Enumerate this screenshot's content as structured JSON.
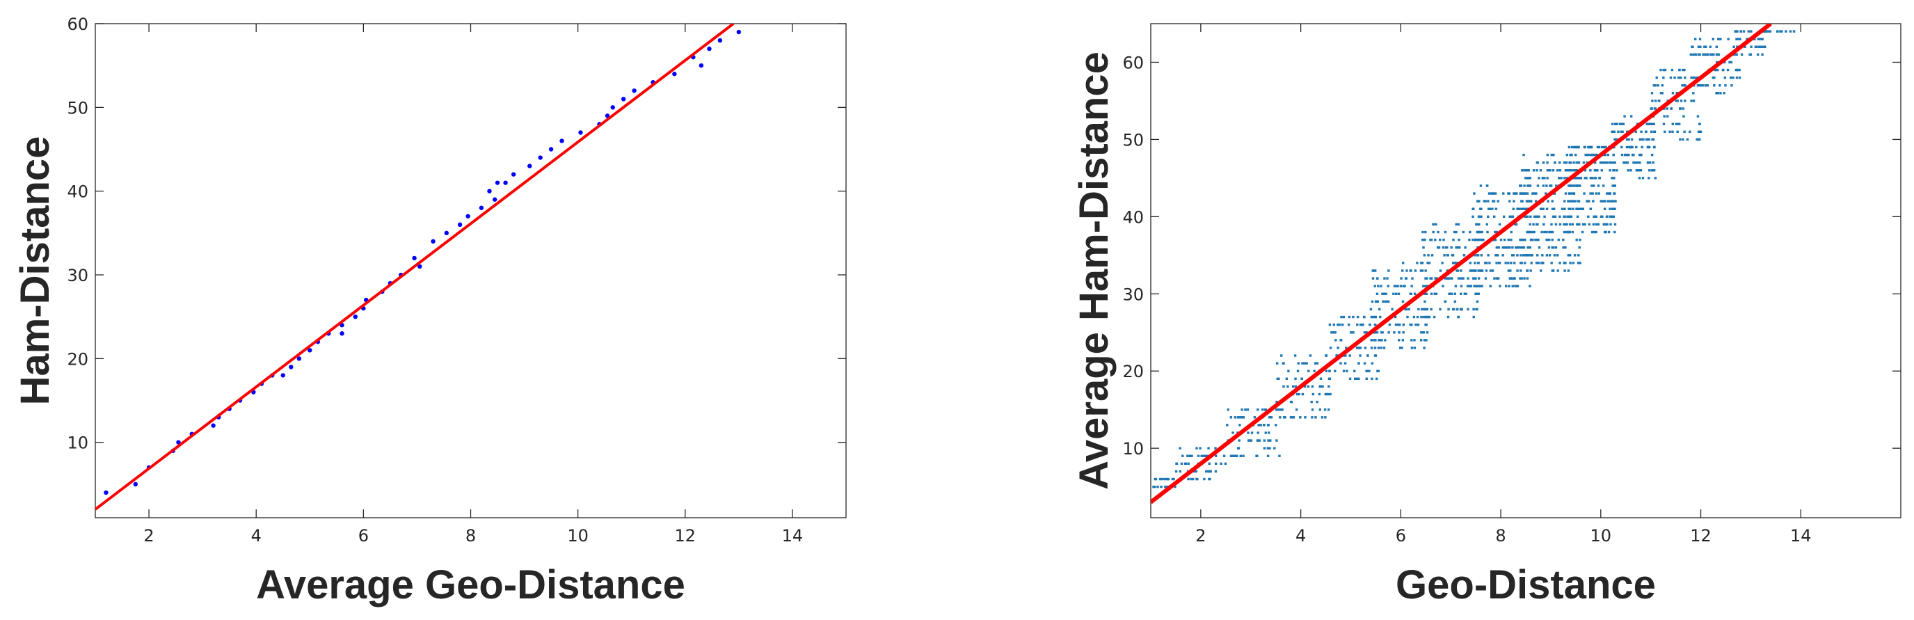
{
  "chart_data": [
    {
      "type": "scatter",
      "xlabel": "Average Geo-Distance",
      "ylabel": "Ham-Distance",
      "xlim": [
        1,
        15
      ],
      "ylim": [
        1,
        60
      ],
      "xticks": [
        2,
        4,
        6,
        8,
        10,
        12,
        14
      ],
      "yticks": [
        10,
        20,
        30,
        40,
        50,
        60
      ],
      "grid": false,
      "colors": {
        "points": "#0000ff",
        "fit": "#ff0000",
        "axis": "#262626"
      },
      "fit_line": {
        "x": [
          1,
          12.9
        ],
        "y": [
          2,
          60
        ]
      },
      "points": [
        [
          1.2,
          4
        ],
        [
          1.75,
          5
        ],
        [
          2.0,
          7
        ],
        [
          2.45,
          9
        ],
        [
          2.55,
          10
        ],
        [
          2.8,
          11
        ],
        [
          3.2,
          12
        ],
        [
          3.3,
          13
        ],
        [
          3.5,
          14
        ],
        [
          3.7,
          15
        ],
        [
          3.95,
          16
        ],
        [
          4.1,
          17
        ],
        [
          4.3,
          18
        ],
        [
          4.5,
          18
        ],
        [
          4.65,
          19
        ],
        [
          4.8,
          20
        ],
        [
          5.0,
          21
        ],
        [
          5.15,
          22
        ],
        [
          5.35,
          23
        ],
        [
          5.6,
          23
        ],
        [
          5.6,
          24
        ],
        [
          5.85,
          25
        ],
        [
          6.0,
          26
        ],
        [
          6.05,
          27
        ],
        [
          6.35,
          28
        ],
        [
          6.5,
          29
        ],
        [
          6.7,
          30
        ],
        [
          6.95,
          32
        ],
        [
          7.05,
          31
        ],
        [
          7.3,
          34
        ],
        [
          7.55,
          35
        ],
        [
          7.8,
          36
        ],
        [
          7.95,
          37
        ],
        [
          8.2,
          38
        ],
        [
          8.35,
          40
        ],
        [
          8.45,
          39
        ],
        [
          8.5,
          41
        ],
        [
          8.65,
          41
        ],
        [
          8.8,
          42
        ],
        [
          9.1,
          43
        ],
        [
          9.3,
          44
        ],
        [
          9.5,
          45
        ],
        [
          9.7,
          46
        ],
        [
          10.05,
          47
        ],
        [
          10.4,
          48
        ],
        [
          10.55,
          49
        ],
        [
          10.65,
          50
        ],
        [
          10.85,
          51
        ],
        [
          11.05,
          52
        ],
        [
          11.4,
          53
        ],
        [
          11.8,
          54
        ],
        [
          12.15,
          56
        ],
        [
          12.3,
          55
        ],
        [
          12.45,
          57
        ],
        [
          12.65,
          58
        ],
        [
          13.0,
          59
        ]
      ]
    },
    {
      "type": "scatter",
      "xlabel": "Geo-Distance",
      "ylabel": "Average Ham-Distance",
      "xlim": [
        1,
        16
      ],
      "ylim": [
        1,
        65
      ],
      "xticks": [
        2,
        4,
        6,
        8,
        10,
        12,
        14
      ],
      "yticks": [
        10,
        20,
        30,
        40,
        50,
        60
      ],
      "grid": false,
      "colors": {
        "points": "#1f77b4",
        "fit": "#ff0000",
        "axis": "#262626"
      },
      "fit_line": {
        "x": [
          1,
          13.4
        ],
        "y": [
          3,
          65
        ]
      },
      "bands": [
        {
          "x": [
            1.0,
            1.5
          ],
          "y": [
            4.5,
            6.5
          ],
          "n": 25
        },
        {
          "x": [
            1.5,
            2.5
          ],
          "y": [
            5.5,
            10
          ],
          "n": 55
        },
        {
          "x": [
            2.5,
            3.6
          ],
          "y": [
            8.5,
            15
          ],
          "n": 70
        },
        {
          "x": [
            3.5,
            4.6
          ],
          "y": [
            13.5,
            22
          ],
          "n": 80
        },
        {
          "x": [
            4.5,
            5.6
          ],
          "y": [
            19,
            27.5
          ],
          "n": 90
        },
        {
          "x": [
            5.4,
            6.6
          ],
          "y": [
            23,
            34
          ],
          "n": 130
        },
        {
          "x": [
            6.4,
            7.6
          ],
          "y": [
            27,
            39
          ],
          "n": 160
        },
        {
          "x": [
            7.4,
            8.6
          ],
          "y": [
            31,
            44
          ],
          "n": 200
        },
        {
          "x": [
            8.4,
            9.6
          ],
          "y": [
            33,
            48
          ],
          "n": 230
        },
        {
          "x": [
            9.3,
            10.3
          ],
          "y": [
            38,
            49.5
          ],
          "n": 200
        },
        {
          "x": [
            10.2,
            11.1
          ],
          "y": [
            45,
            53
          ],
          "n": 110
        },
        {
          "x": [
            11.0,
            12.0
          ],
          "y": [
            50,
            59
          ],
          "n": 100
        },
        {
          "x": [
            11.8,
            12.8
          ],
          "y": [
            56,
            63
          ],
          "n": 80
        },
        {
          "x": [
            12.6,
            13.3
          ],
          "y": [
            61,
            64
          ],
          "n": 45
        },
        {
          "x": [
            13.2,
            13.9
          ],
          "y": [
            63.5,
            64.5
          ],
          "n": 15
        }
      ]
    }
  ]
}
